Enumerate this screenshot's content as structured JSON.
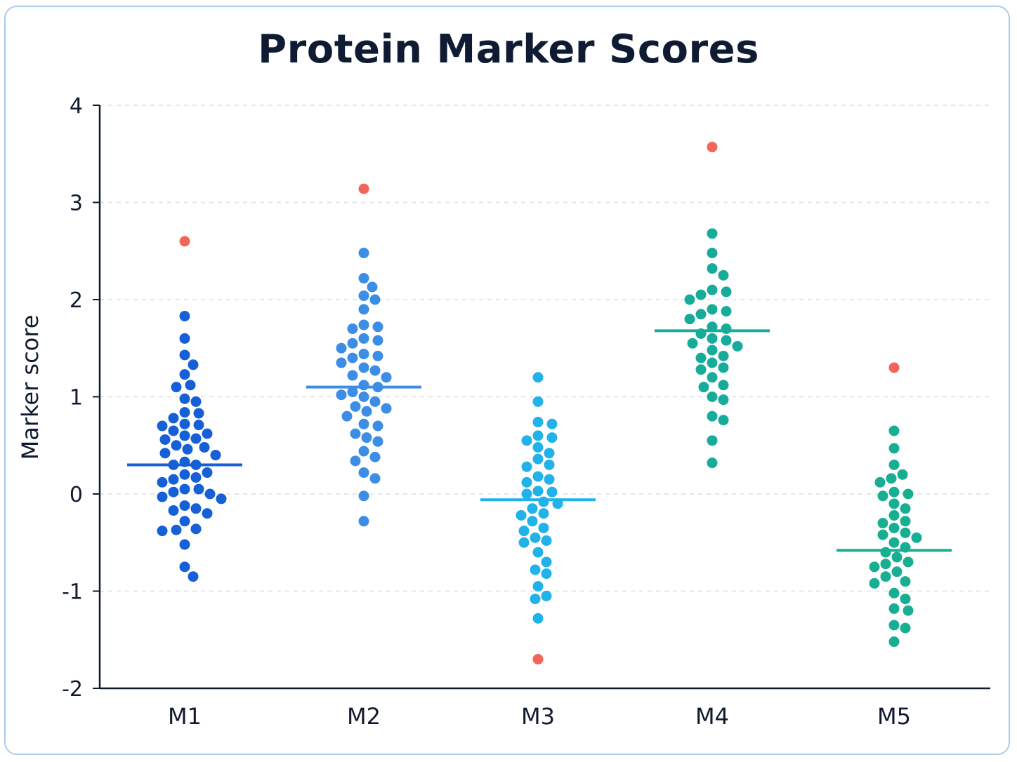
{
  "chart_data": {
    "type": "scatter",
    "title": "Protein Marker Scores",
    "xlabel": "",
    "ylabel": "Marker score",
    "ylim": [
      -2,
      4
    ],
    "yticks": [
      "4",
      "3",
      "2",
      "1",
      "0",
      "-1",
      "-2"
    ],
    "ytick_values": [
      4,
      3,
      2,
      1,
      0,
      -1,
      -2
    ],
    "grid": "horizontal dashed",
    "categories": [
      "M1",
      "M2",
      "M3",
      "M4",
      "M5"
    ],
    "outlier_color": "#f2665a",
    "series": [
      {
        "category": "M1",
        "color": "#1560d6",
        "median": 0.3,
        "outlier": 2.6,
        "values": [
          1.83,
          1.6,
          1.43,
          1.33,
          1.23,
          1.12,
          1.1,
          0.98,
          0.95,
          0.84,
          0.83,
          0.78,
          0.72,
          0.71,
          0.7,
          0.65,
          0.62,
          0.6,
          0.57,
          0.56,
          0.5,
          0.48,
          0.46,
          0.42,
          0.4,
          0.33,
          0.3,
          0.3,
          0.22,
          0.2,
          0.17,
          0.15,
          0.12,
          0.05,
          0.05,
          0.02,
          0.0,
          -0.03,
          -0.05,
          -0.12,
          -0.15,
          -0.17,
          -0.2,
          -0.28,
          -0.36,
          -0.37,
          -0.38,
          -0.52,
          -0.75,
          -0.85
        ]
      },
      {
        "category": "M2",
        "color": "#3b8de6",
        "median": 1.1,
        "outlier": 3.14,
        "values": [
          2.48,
          2.22,
          2.13,
          2.04,
          2.0,
          1.9,
          1.74,
          1.72,
          1.7,
          1.6,
          1.58,
          1.55,
          1.5,
          1.44,
          1.42,
          1.4,
          1.35,
          1.3,
          1.27,
          1.22,
          1.2,
          1.12,
          1.1,
          1.05,
          1.02,
          1.0,
          0.95,
          0.9,
          0.88,
          0.85,
          0.8,
          0.72,
          0.7,
          0.62,
          0.58,
          0.54,
          0.44,
          0.38,
          0.34,
          0.22,
          0.16,
          -0.02,
          -0.28
        ]
      },
      {
        "category": "M3",
        "color": "#20b2e8",
        "median": -0.06,
        "outlier": -1.7,
        "values": [
          1.2,
          0.95,
          0.74,
          0.72,
          0.6,
          0.58,
          0.55,
          0.48,
          0.42,
          0.36,
          0.3,
          0.28,
          0.18,
          0.15,
          0.12,
          0.03,
          0.02,
          0.0,
          -0.08,
          -0.1,
          -0.15,
          -0.2,
          -0.22,
          -0.28,
          -0.35,
          -0.38,
          -0.45,
          -0.48,
          -0.5,
          -0.6,
          -0.7,
          -0.78,
          -0.82,
          -0.95,
          -1.05,
          -1.08,
          -1.28
        ]
      },
      {
        "category": "M4",
        "color": "#17ac9a",
        "median": 1.68,
        "outlier": 3.57,
        "values": [
          2.68,
          2.48,
          2.32,
          2.25,
          2.1,
          2.08,
          2.05,
          2.0,
          1.9,
          1.88,
          1.85,
          1.8,
          1.72,
          1.7,
          1.65,
          1.6,
          1.58,
          1.55,
          1.52,
          1.48,
          1.42,
          1.4,
          1.35,
          1.3,
          1.28,
          1.2,
          1.12,
          1.1,
          1.0,
          0.97,
          0.8,
          0.76,
          0.55,
          0.32
        ]
      },
      {
        "category": "M5",
        "color": "#18ae92",
        "median": -0.58,
        "outlier": 1.3,
        "values": [
          0.65,
          0.47,
          0.3,
          0.2,
          0.16,
          0.12,
          0.02,
          0.0,
          -0.02,
          -0.1,
          -0.15,
          -0.22,
          -0.28,
          -0.3,
          -0.35,
          -0.4,
          -0.42,
          -0.45,
          -0.5,
          -0.55,
          -0.6,
          -0.65,
          -0.7,
          -0.72,
          -0.75,
          -0.8,
          -0.85,
          -0.9,
          -0.92,
          -1.02,
          -1.08,
          -1.18,
          -1.2,
          -1.35,
          -1.38,
          -1.52
        ]
      }
    ]
  }
}
